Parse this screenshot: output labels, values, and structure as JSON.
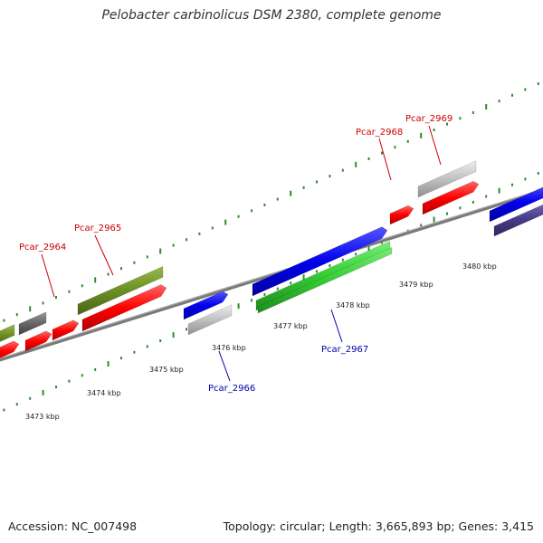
{
  "title": "Pelobacter carbinolicus DSM 2380, complete genome",
  "footer": {
    "accession": "Accession: NC_007498",
    "summary": "Topology: circular; Length: 3,665,893 bp; Genes: 3,415"
  },
  "colors": {
    "backbone": "#7a7a7a",
    "tick": "#2e8b2e",
    "red": "#ff0000",
    "blue": "#0000ee",
    "olive": "#6b8e23",
    "gray": "#666666",
    "silver": "#c0c0c0",
    "green": "#33cc33",
    "darkgreen": "#2e8b2e",
    "slate": "#483d8b",
    "label_red": "#cc0000",
    "label_blue": "#0000aa"
  },
  "scale_labels": [
    {
      "text": "3473 kbp"
    },
    {
      "text": "3474 kbp"
    },
    {
      "text": "3475 kbp"
    },
    {
      "text": "3476 kbp"
    },
    {
      "text": "3477 kbp"
    },
    {
      "text": "3478 kbp"
    },
    {
      "text": "3479 kbp"
    },
    {
      "text": "3480 kbp"
    }
  ],
  "gene_labels": [
    {
      "text": "Pcar_2964",
      "strand": "forward"
    },
    {
      "text": "Pcar_2965",
      "strand": "forward"
    },
    {
      "text": "Pcar_2966",
      "strand": "reverse"
    },
    {
      "text": "Pcar_2967",
      "strand": "reverse"
    },
    {
      "text": "Pcar_2968",
      "strand": "forward"
    },
    {
      "text": "Pcar_2969",
      "strand": "forward"
    }
  ]
}
